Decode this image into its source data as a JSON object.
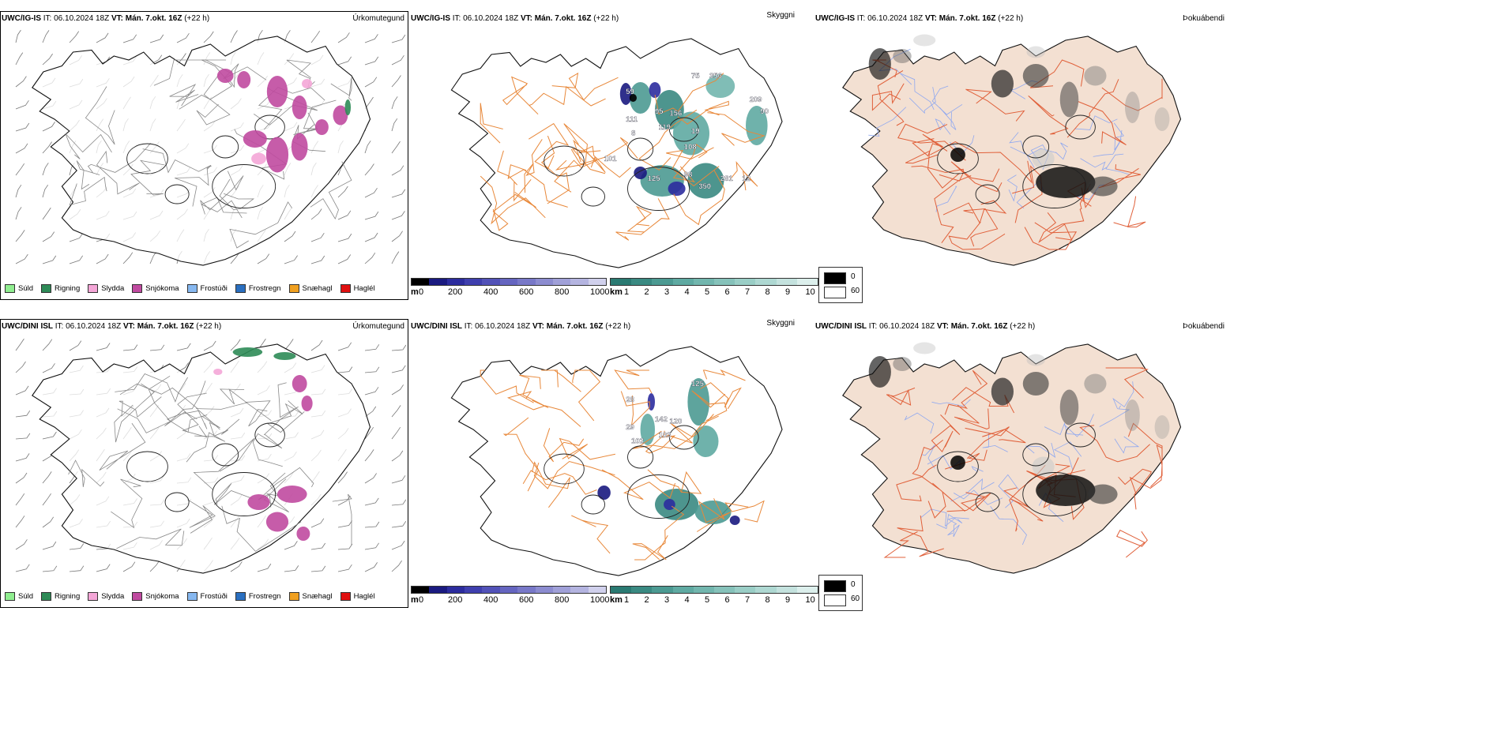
{
  "rows": [
    {
      "id": "top",
      "header": {
        "model": "UWC/IG-IS",
        "it_label": "IT:",
        "it_value": "06.10.2024 18Z",
        "vt_label": "VT:",
        "vt_value": "Mán. 7.okt. 16Z",
        "lead": "(+22 h)"
      },
      "panel_titles": {
        "precip": "Úrkomutegund",
        "visibility": "Skyggni",
        "fog": "Þokuábendi"
      },
      "cell_labels": [
        "59",
        "111",
        "8",
        "95",
        "156",
        "119",
        "75",
        "356",
        "209",
        "90",
        "108",
        "19",
        "101",
        "125",
        "98",
        "281",
        "350",
        "12"
      ]
    },
    {
      "id": "bottom",
      "header": {
        "model": "UWC/DINI ISL",
        "it_label": "IT:",
        "it_value": "06.10.2024 18Z",
        "vt_label": "VT:",
        "vt_value": "Mán. 7.okt. 16Z",
        "lead": "(+22 h)"
      },
      "panel_titles": {
        "precip": "Úrkomutegund",
        "visibility": "Skyggni",
        "fog": "Þokuábendi"
      },
      "cell_labels": [
        "28",
        "29",
        "102",
        "142",
        "120",
        "103",
        "125"
      ]
    }
  ],
  "precip_legend": [
    {
      "label": "Súld",
      "color": "#90ee90"
    },
    {
      "label": "Rigning",
      "color": "#2e8b57"
    },
    {
      "label": "Slydda",
      "color": "#f4a6d7"
    },
    {
      "label": "Snjókoma",
      "color": "#c04aa0"
    },
    {
      "label": "Frostúði",
      "color": "#87b8f0"
    },
    {
      "label": "Frostregn",
      "color": "#2a6fc0"
    },
    {
      "label": "Snæhagl",
      "color": "#f0a020"
    },
    {
      "label": "Haglél",
      "color": "#e01010"
    }
  ],
  "ceiling_scale": {
    "unit": "m",
    "ticks": [
      "0",
      "200",
      "400",
      "600",
      "800",
      "1000"
    ],
    "colors": [
      "#000000",
      "#1a1a80",
      "#2c2c9e",
      "#3f3fae",
      "#5252b8",
      "#6565c0",
      "#7878c8",
      "#8c8cd0",
      "#a0a0d8",
      "#b4b4e0",
      "#d0d0ec"
    ]
  },
  "visibility_scale": {
    "unit": "km",
    "ticks": [
      "1",
      "2",
      "3",
      "4",
      "5",
      "6",
      "7",
      "8",
      "9",
      "10"
    ],
    "colors": [
      "#2a7a72",
      "#3a8a82",
      "#4c9a92",
      "#5faaa2",
      "#72b6ae",
      "#86c2ba",
      "#9acec6",
      "#aed8d2",
      "#c4e2de",
      "#dcefec"
    ]
  },
  "fog_legend": [
    {
      "value": "0",
      "color": "#000000"
    },
    {
      "value": "60",
      "color": "#ffffff"
    }
  ],
  "colors": {
    "land_fog": "#f3e0d2",
    "roads": "#e8883a",
    "roads_fog": "#e0603a",
    "rivers": "#8fa8f0",
    "coast": "#111111"
  }
}
